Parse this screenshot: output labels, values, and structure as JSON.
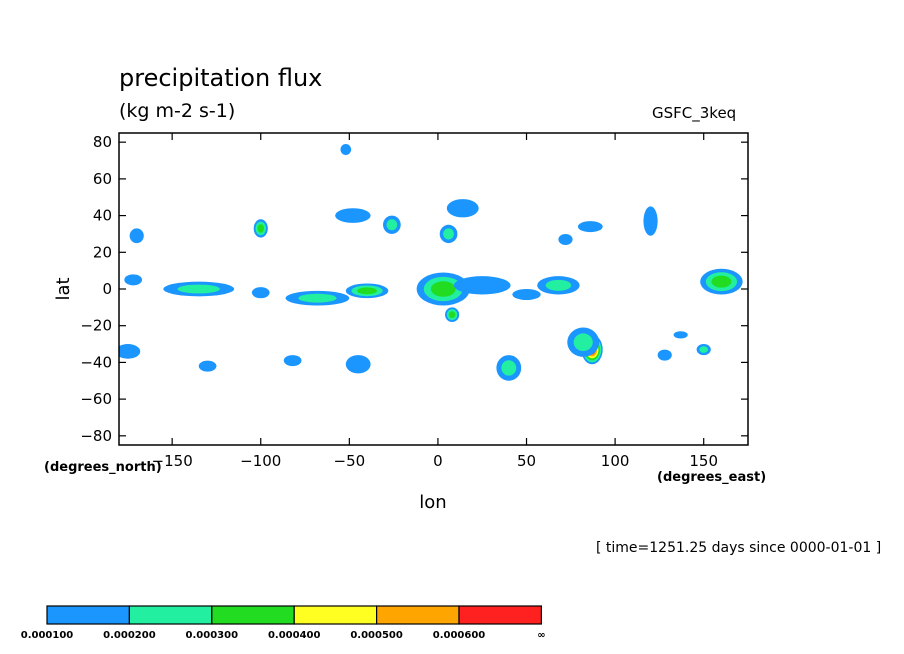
{
  "header": {
    "title": "precipitation flux",
    "units": "(kg m-2 s-1)",
    "model": "GSFC_3keq"
  },
  "footer": {
    "time_note": "[ time=1251.25 days since 0000-01-01 ]"
  },
  "axes": {
    "lat_units": "(degrees_north)",
    "lon_units": "(degrees_east)"
  },
  "chart_data": {
    "type": "heatmap",
    "title": "precipitation flux",
    "subtitle": "(kg m-2 s-1)",
    "xlabel": "lon",
    "ylabel": "lat",
    "xlim": [
      -180,
      175
    ],
    "ylim": [
      -85,
      85
    ],
    "xticks": [
      -150,
      -100,
      -50,
      0,
      50,
      100,
      150
    ],
    "yticks": [
      80,
      60,
      40,
      20,
      0,
      -20,
      -40,
      -60,
      -80
    ],
    "xtick_labels": [
      "−150",
      "−100",
      "−50",
      "0",
      "50",
      "100",
      "150"
    ],
    "ytick_labels": [
      "80",
      "60",
      "40",
      "20",
      "0",
      "−20",
      "−40",
      "−60",
      "−80"
    ],
    "grid": false,
    "legend": {
      "position": "bottom-left",
      "labels": [
        "0.000100",
        "0.000200",
        "0.000300",
        "0.000400",
        "0.000500",
        "0.000600",
        "∞"
      ],
      "colors": [
        "#1c96ff",
        "#22f0a0",
        "#22dc22",
        "#ffff22",
        "#ffa500",
        "#ff2020"
      ]
    },
    "levels": [
      0.0001,
      0.0002,
      0.0003,
      0.0004,
      0.0005,
      0.0006
    ],
    "contour_colors": [
      "#1c96ff",
      "#22f0a0",
      "#22dc22",
      "#ffff22",
      "#ffa500",
      "#ff2020"
    ],
    "cells": [
      {
        "lon": 0,
        "lat": 2,
        "level": 6,
        "rx": 7,
        "ry": 6
      },
      {
        "lon": 87,
        "lat": -33,
        "level": 6,
        "rx": 6,
        "ry": 8
      },
      {
        "lon": 3,
        "lat": 0,
        "level": 3,
        "rx": 15,
        "ry": 9
      },
      {
        "lon": -135,
        "lat": 0,
        "level": 2,
        "rx": 20,
        "ry": 4
      },
      {
        "lon": -40,
        "lat": -1,
        "level": 3,
        "rx": 12,
        "ry": 4
      },
      {
        "lon": 8,
        "lat": -14,
        "level": 3,
        "rx": 4,
        "ry": 4
      },
      {
        "lon": 160,
        "lat": 4,
        "level": 3,
        "rx": 12,
        "ry": 7
      },
      {
        "lon": 68,
        "lat": 2,
        "level": 2,
        "rx": 12,
        "ry": 5
      },
      {
        "lon": -100,
        "lat": 33,
        "level": 3,
        "rx": 4,
        "ry": 5
      },
      {
        "lon": 82,
        "lat": -29,
        "level": 2,
        "rx": 9,
        "ry": 8
      },
      {
        "lon": 120,
        "lat": 37,
        "level": 1,
        "rx": 4,
        "ry": 8
      },
      {
        "lon": -48,
        "lat": 40,
        "level": 1,
        "rx": 10,
        "ry": 4
      },
      {
        "lon": -26,
        "lat": 35,
        "level": 2,
        "rx": 5,
        "ry": 5
      },
      {
        "lon": 14,
        "lat": 44,
        "level": 1,
        "rx": 9,
        "ry": 5
      },
      {
        "lon": 6,
        "lat": 30,
        "level": 2,
        "rx": 5,
        "ry": 5
      },
      {
        "lon": -68,
        "lat": -5,
        "level": 2,
        "rx": 18,
        "ry": 4
      },
      {
        "lon": 40,
        "lat": -43,
        "level": 2,
        "rx": 7,
        "ry": 7
      },
      {
        "lon": -170,
        "lat": 29,
        "level": 1,
        "rx": 4,
        "ry": 4
      },
      {
        "lon": -45,
        "lat": -41,
        "level": 1,
        "rx": 7,
        "ry": 5
      },
      {
        "lon": -175,
        "lat": -34,
        "level": 1,
        "rx": 7,
        "ry": 4
      },
      {
        "lon": 150,
        "lat": -33,
        "level": 2,
        "rx": 4,
        "ry": 3
      },
      {
        "lon": 86,
        "lat": 34,
        "level": 1,
        "rx": 7,
        "ry": 3
      },
      {
        "lon": -130,
        "lat": -42,
        "level": 1,
        "rx": 5,
        "ry": 3
      },
      {
        "lon": -82,
        "lat": -39,
        "level": 1,
        "rx": 5,
        "ry": 3
      },
      {
        "lon": 72,
        "lat": 27,
        "level": 1,
        "rx": 4,
        "ry": 3
      },
      {
        "lon": -100,
        "lat": -2,
        "level": 1,
        "rx": 5,
        "ry": 3
      },
      {
        "lon": -172,
        "lat": 5,
        "level": 1,
        "rx": 5,
        "ry": 3
      },
      {
        "lon": -52,
        "lat": 76,
        "level": 1,
        "rx": 3,
        "ry": 3
      },
      {
        "lon": 25,
        "lat": 2,
        "level": 1,
        "rx": 16,
        "ry": 5
      },
      {
        "lon": 50,
        "lat": -3,
        "level": 1,
        "rx": 8,
        "ry": 3
      },
      {
        "lon": 128,
        "lat": -36,
        "level": 1,
        "rx": 4,
        "ry": 3
      },
      {
        "lon": 137,
        "lat": -25,
        "level": 1,
        "rx": 4,
        "ry": 2
      }
    ]
  }
}
